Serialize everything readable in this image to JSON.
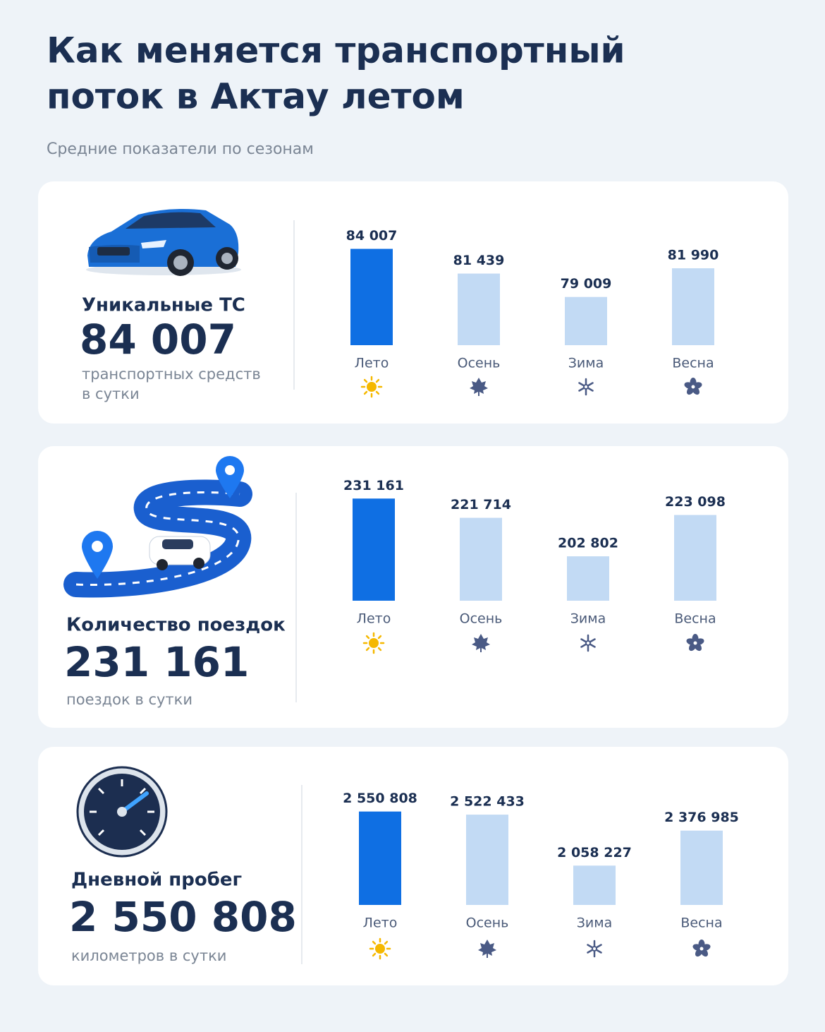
{
  "title": [
    "Как меняется транспортный",
    "поток в Актау летом"
  ],
  "subtitle": "Средние показатели по сезонам",
  "chart_data": [
    {
      "type": "bar",
      "title": "Уникальные ТС",
      "unit": [
        "транспортных средств",
        "в сутки"
      ],
      "categories": [
        "Лето",
        "Осень",
        "Зима",
        "Весна"
      ],
      "values": [
        84007,
        81439,
        79009,
        81990
      ],
      "value_labels": [
        "84 007",
        "81 439",
        "79 009",
        "81 990"
      ],
      "colors": [
        "#0f6fe3",
        "#c2daf4",
        "#c2daf4",
        "#c2daf4"
      ],
      "ylim": [
        74000,
        85000
      ]
    },
    {
      "type": "bar",
      "title": "Количество поездок",
      "unit": [
        "поездок в сутки"
      ],
      "categories": [
        "Лето",
        "Осень",
        "Зима",
        "Весна"
      ],
      "values": [
        231161,
        221714,
        202802,
        223098
      ],
      "value_labels": [
        "231 161",
        "221 714",
        "202 802",
        "223 098"
      ],
      "colors": [
        "#0f6fe3",
        "#c2daf4",
        "#c2daf4",
        "#c2daf4"
      ],
      "ylim": [
        181000,
        233000
      ]
    },
    {
      "type": "bar",
      "title": "Дневной пробег",
      "unit": [
        "километров в сутки"
      ],
      "categories": [
        "Лето",
        "Осень",
        "Зима",
        "Весна"
      ],
      "values": [
        2550808,
        2522433,
        2058227,
        2376985
      ],
      "value_labels": [
        "2 550 808",
        "2 522 433",
        "2 058 227",
        "2 376 985"
      ],
      "colors": [
        "#0f6fe3",
        "#c2daf4",
        "#c2daf4",
        "#c2daf4"
      ],
      "ylim": [
        1700000,
        2600000
      ]
    }
  ]
}
